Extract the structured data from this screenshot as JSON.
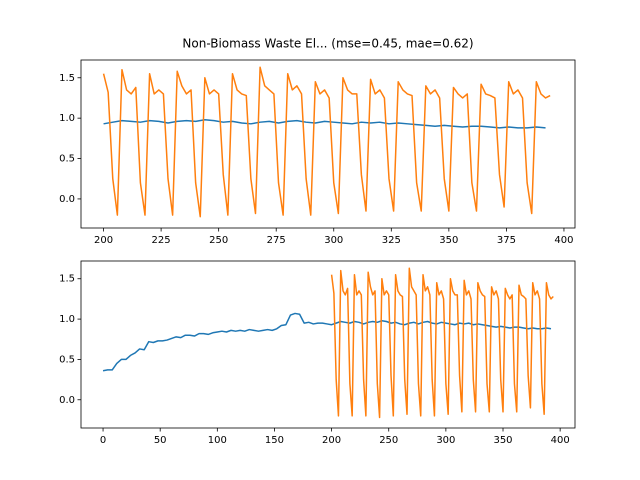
{
  "chart_data": [
    {
      "type": "line",
      "title": "Non-Biomass Waste El... (mse=0.45, mae=0.62)",
      "xlim": [
        190.2,
        404.8
      ],
      "ylim": [
        -0.36,
        1.72
      ],
      "xticks": [
        200,
        225,
        250,
        275,
        300,
        325,
        350,
        375,
        400
      ],
      "yticks": [
        {
          "value": 0,
          "label": "0.0"
        },
        {
          "value": 0.5,
          "label": "0.5"
        },
        {
          "value": 1,
          "label": "1.0"
        },
        {
          "value": 1.5,
          "label": "1.5"
        }
      ],
      "series": [
        {
          "color": "#1f77b4",
          "x": [
            200,
            204,
            208,
            212,
            216,
            220,
            224,
            228,
            232,
            236,
            240,
            244,
            248,
            252,
            256,
            260,
            264,
            268,
            272,
            276,
            280,
            284,
            288,
            292,
            296,
            300,
            304,
            308,
            312,
            316,
            320,
            324,
            328,
            332,
            336,
            340,
            344,
            348,
            352,
            356,
            360,
            364,
            368,
            372,
            376,
            380,
            384,
            388,
            392
          ],
          "values": [
            0.93,
            0.95,
            0.97,
            0.96,
            0.95,
            0.97,
            0.96,
            0.94,
            0.96,
            0.97,
            0.96,
            0.98,
            0.97,
            0.95,
            0.96,
            0.94,
            0.93,
            0.95,
            0.96,
            0.94,
            0.96,
            0.97,
            0.95,
            0.94,
            0.96,
            0.95,
            0.94,
            0.93,
            0.95,
            0.94,
            0.95,
            0.93,
            0.94,
            0.93,
            0.92,
            0.91,
            0.9,
            0.91,
            0.9,
            0.89,
            0.9,
            0.9,
            0.89,
            0.88,
            0.89,
            0.88,
            0.88,
            0.89,
            0.88
          ]
        },
        {
          "color": "#ff7f0e",
          "x": [
            200,
            202,
            204,
            206,
            208,
            210,
            212,
            214,
            216,
            218,
            220,
            222,
            224,
            226,
            228,
            230,
            232,
            234,
            236,
            238,
            240,
            242,
            244,
            246,
            248,
            250,
            252,
            254,
            256,
            258,
            260,
            262,
            264,
            266,
            268,
            270,
            272,
            274,
            276,
            278,
            280,
            282,
            284,
            286,
            288,
            290,
            292,
            294,
            296,
            298,
            300,
            302,
            304,
            306,
            308,
            310,
            312,
            314,
            316,
            318,
            320,
            322,
            324,
            326,
            328,
            330,
            332,
            334,
            336,
            338,
            340,
            342,
            344,
            346,
            348,
            350,
            352,
            354,
            356,
            358,
            360,
            362,
            364,
            366,
            368,
            370,
            372,
            374,
            376,
            378,
            380,
            382,
            384,
            386,
            388,
            390,
            392,
            394
          ],
          "values": [
            1.55,
            1.32,
            0.25,
            -0.2,
            1.6,
            1.35,
            1.3,
            1.38,
            0.2,
            -0.2,
            1.55,
            1.3,
            1.35,
            1.3,
            0.25,
            -0.2,
            1.58,
            1.4,
            1.3,
            1.35,
            0.2,
            -0.22,
            1.5,
            1.3,
            1.35,
            1.3,
            0.3,
            -0.2,
            1.55,
            1.35,
            1.3,
            1.28,
            0.25,
            -0.18,
            1.63,
            1.4,
            1.35,
            1.3,
            0.2,
            -0.2,
            1.55,
            1.35,
            1.4,
            1.3,
            0.25,
            -0.2,
            1.45,
            1.3,
            1.35,
            1.25,
            0.2,
            -0.18,
            1.5,
            1.35,
            1.3,
            1.3,
            0.3,
            -0.15,
            1.48,
            1.3,
            1.35,
            1.25,
            0.25,
            -0.15,
            1.45,
            1.35,
            1.3,
            1.28,
            0.2,
            -0.15,
            1.4,
            1.3,
            1.35,
            1.25,
            0.25,
            -0.15,
            1.38,
            1.3,
            1.25,
            1.3,
            0.2,
            -0.15,
            1.42,
            1.3,
            1.28,
            1.25,
            0.3,
            -0.1,
            1.45,
            1.3,
            1.35,
            1.25,
            0.2,
            -0.18,
            1.45,
            1.3,
            1.25,
            1.28
          ]
        }
      ]
    },
    {
      "type": "line",
      "xlim": [
        -19.3,
        413
      ],
      "ylim": [
        -0.35,
        1.72
      ],
      "xticks": [
        0,
        50,
        100,
        150,
        200,
        250,
        300,
        350,
        400
      ],
      "yticks": [
        {
          "value": 0,
          "label": "0.0"
        },
        {
          "value": 0.5,
          "label": "0.5"
        },
        {
          "value": 1,
          "label": "1.0"
        },
        {
          "value": 1.5,
          "label": "1.5"
        }
      ],
      "series": [
        {
          "color": "#1f77b4",
          "x": [
            0,
            4,
            8,
            12,
            16,
            20,
            24,
            28,
            32,
            36,
            40,
            44,
            48,
            52,
            56,
            60,
            64,
            68,
            72,
            76,
            80,
            84,
            88,
            92,
            96,
            100,
            104,
            108,
            112,
            116,
            120,
            124,
            128,
            132,
            136,
            140,
            144,
            148,
            152,
            156,
            160,
            164,
            168,
            172,
            176,
            180,
            184,
            188,
            192,
            196,
            200,
            204,
            208,
            212,
            216,
            220,
            224,
            228,
            232,
            236,
            240,
            244,
            248,
            252,
            256,
            260,
            264,
            268,
            272,
            276,
            280,
            284,
            288,
            292,
            296,
            300,
            304,
            308,
            312,
            316,
            320,
            324,
            328,
            332,
            336,
            340,
            344,
            348,
            352,
            356,
            360,
            364,
            368,
            372,
            376,
            380,
            384,
            388,
            392
          ],
          "values": [
            0.36,
            0.37,
            0.37,
            0.45,
            0.5,
            0.5,
            0.55,
            0.58,
            0.63,
            0.62,
            0.72,
            0.71,
            0.73,
            0.73,
            0.74,
            0.76,
            0.78,
            0.77,
            0.8,
            0.8,
            0.79,
            0.82,
            0.82,
            0.81,
            0.83,
            0.84,
            0.85,
            0.84,
            0.86,
            0.85,
            0.86,
            0.85,
            0.87,
            0.86,
            0.85,
            0.86,
            0.87,
            0.86,
            0.88,
            0.92,
            0.93,
            1.05,
            1.07,
            1.06,
            0.95,
            0.96,
            0.94,
            0.95,
            0.95,
            0.94,
            0.93,
            0.95,
            0.97,
            0.96,
            0.95,
            0.97,
            0.96,
            0.94,
            0.96,
            0.97,
            0.96,
            0.98,
            0.97,
            0.95,
            0.96,
            0.94,
            0.93,
            0.95,
            0.96,
            0.94,
            0.96,
            0.97,
            0.95,
            0.94,
            0.96,
            0.95,
            0.94,
            0.93,
            0.95,
            0.94,
            0.95,
            0.93,
            0.94,
            0.93,
            0.92,
            0.91,
            0.9,
            0.91,
            0.9,
            0.89,
            0.9,
            0.9,
            0.89,
            0.88,
            0.89,
            0.88,
            0.88,
            0.89,
            0.88
          ]
        },
        {
          "color": "#ff7f0e",
          "x": [
            200,
            202,
            204,
            206,
            208,
            210,
            212,
            214,
            216,
            218,
            220,
            222,
            224,
            226,
            228,
            230,
            232,
            234,
            236,
            238,
            240,
            242,
            244,
            246,
            248,
            250,
            252,
            254,
            256,
            258,
            260,
            262,
            264,
            266,
            268,
            270,
            272,
            274,
            276,
            278,
            280,
            282,
            284,
            286,
            288,
            290,
            292,
            294,
            296,
            298,
            300,
            302,
            304,
            306,
            308,
            310,
            312,
            314,
            316,
            318,
            320,
            322,
            324,
            326,
            328,
            330,
            332,
            334,
            336,
            338,
            340,
            342,
            344,
            346,
            348,
            350,
            352,
            354,
            356,
            358,
            360,
            362,
            364,
            366,
            368,
            370,
            372,
            374,
            376,
            378,
            380,
            382,
            384,
            386,
            388,
            390,
            392,
            394
          ],
          "values": [
            1.55,
            1.32,
            0.25,
            -0.2,
            1.6,
            1.35,
            1.3,
            1.38,
            0.2,
            -0.2,
            1.55,
            1.3,
            1.35,
            1.3,
            0.25,
            -0.2,
            1.58,
            1.4,
            1.3,
            1.35,
            0.2,
            -0.22,
            1.5,
            1.3,
            1.35,
            1.3,
            0.3,
            -0.2,
            1.55,
            1.35,
            1.3,
            1.28,
            0.25,
            -0.18,
            1.63,
            1.4,
            1.35,
            1.3,
            0.2,
            -0.2,
            1.55,
            1.35,
            1.4,
            1.3,
            0.25,
            -0.2,
            1.45,
            1.3,
            1.35,
            1.25,
            0.2,
            -0.18,
            1.5,
            1.35,
            1.3,
            1.3,
            0.3,
            -0.15,
            1.48,
            1.3,
            1.35,
            1.25,
            0.25,
            -0.15,
            1.45,
            1.35,
            1.3,
            1.28,
            0.2,
            -0.15,
            1.4,
            1.3,
            1.35,
            1.25,
            0.25,
            -0.15,
            1.38,
            1.3,
            1.25,
            1.3,
            0.2,
            -0.15,
            1.42,
            1.3,
            1.28,
            1.25,
            0.3,
            -0.1,
            1.45,
            1.3,
            1.35,
            1.25,
            0.2,
            -0.18,
            1.45,
            1.3,
            1.25,
            1.28
          ]
        }
      ]
    }
  ]
}
